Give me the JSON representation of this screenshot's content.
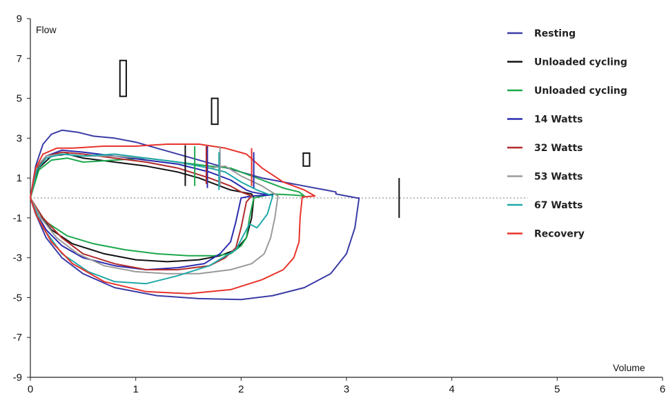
{
  "chart_data": {
    "type": "line",
    "xlabel": "Volume",
    "ylabel": "Flow",
    "xlim": [
      0,
      6
    ],
    "ylim": [
      -9,
      9
    ],
    "x_ticks": [
      "0",
      "1",
      "2",
      "3",
      "4",
      "5",
      "6"
    ],
    "y_ticks": [
      "9",
      "7",
      "5",
      "3",
      "1",
      "-1",
      "-3",
      "-5",
      "-7",
      "-9"
    ],
    "zero_line": "dotted",
    "grid": false,
    "legend_position": "right",
    "series": [
      {
        "name": "Resting",
        "color": "#3a3aa6",
        "x": [
          0,
          0.05,
          0.12,
          0.2,
          0.3,
          0.45,
          0.6,
          0.8,
          1.0,
          1.2,
          1.4,
          1.6,
          1.8,
          2.0,
          2.2,
          2.4,
          2.6,
          2.8,
          2.9,
          2.9,
          3.0,
          3.1,
          3.12,
          3.08,
          3.0,
          2.85,
          2.6,
          2.3,
          2.0,
          1.6,
          1.2,
          0.8,
          0.5,
          0.3,
          0.15,
          0.05,
          0
        ],
        "y": [
          0,
          1.6,
          2.7,
          3.2,
          3.4,
          3.3,
          3.1,
          3.0,
          2.8,
          2.5,
          2.2,
          1.9,
          1.6,
          1.3,
          1.0,
          0.8,
          0.6,
          0.4,
          0.3,
          0.2,
          0.1,
          0.0,
          0,
          -1.5,
          -2.8,
          -3.8,
          -4.5,
          -4.9,
          -5.1,
          -5.05,
          -4.9,
          -4.5,
          -3.8,
          -3.0,
          -2.0,
          -0.8,
          0
        ]
      },
      {
        "name": "Unloaded cycling",
        "color": "#111111",
        "x": [
          0,
          0.08,
          0.2,
          0.35,
          0.5,
          0.8,
          1.1,
          1.4,
          1.6,
          1.8,
          1.9,
          2.0,
          2.1,
          2.12,
          2.1,
          2.05,
          1.95,
          1.8,
          1.6,
          1.3,
          1.0,
          0.7,
          0.4,
          0.2,
          0.08,
          0
        ],
        "y": [
          0,
          1.5,
          2.1,
          2.2,
          2.0,
          1.8,
          1.6,
          1.3,
          1.0,
          0.6,
          0.4,
          0.3,
          0.2,
          0,
          -1.0,
          -2.0,
          -2.6,
          -2.9,
          -3.1,
          -3.2,
          -3.1,
          -2.8,
          -2.3,
          -1.6,
          -0.8,
          0
        ]
      },
      {
        "name": "Unloaded cycling",
        "color": "#1aa84a",
        "x": [
          0,
          0.08,
          0.2,
          0.35,
          0.5,
          0.8,
          1.1,
          1.4,
          1.7,
          1.9,
          2.0,
          2.2,
          2.4,
          2.55,
          2.6,
          2.5,
          2.3,
          2.12,
          2.08,
          2.05,
          2.0,
          1.9,
          1.75,
          1.5,
          1.2,
          0.9,
          0.6,
          0.35,
          0.15,
          0.05,
          0
        ],
        "y": [
          0,
          1.4,
          1.9,
          2.0,
          1.8,
          1.9,
          2.0,
          1.8,
          1.6,
          1.5,
          1.3,
          0.9,
          0.5,
          0.3,
          0.1,
          0.15,
          0.2,
          0,
          -1.0,
          -2.0,
          -2.4,
          -2.8,
          -2.9,
          -2.9,
          -2.8,
          -2.6,
          -2.3,
          -1.9,
          -1.2,
          -0.5,
          0
        ]
      },
      {
        "name": "14 Watts",
        "color": "#2a2ab0",
        "x": [
          0,
          0.06,
          0.15,
          0.3,
          0.5,
          0.8,
          1.1,
          1.4,
          1.7,
          1.9,
          2.05,
          2.1,
          2.2,
          2.3,
          2.1,
          2.0,
          1.95,
          1.9,
          1.8,
          1.65,
          1.4,
          1.1,
          0.8,
          0.5,
          0.3,
          0.15,
          0.05,
          0
        ],
        "y": [
          0,
          1.5,
          2.1,
          2.4,
          2.3,
          2.1,
          1.9,
          1.7,
          1.3,
          0.9,
          0.4,
          0.3,
          0.2,
          0.15,
          0.1,
          0,
          -1.2,
          -2.2,
          -2.8,
          -3.3,
          -3.5,
          -3.6,
          -3.4,
          -3.0,
          -2.4,
          -1.6,
          -0.7,
          0
        ]
      },
      {
        "name": "32 Watts",
        "color": "#b02a2a",
        "x": [
          0,
          0.06,
          0.15,
          0.3,
          0.5,
          0.8,
          1.1,
          1.4,
          1.7,
          1.9,
          2.0,
          2.1,
          2.05,
          2.0,
          1.95,
          1.85,
          1.7,
          1.4,
          1.1,
          0.8,
          0.5,
          0.3,
          0.12,
          0
        ],
        "y": [
          0,
          1.5,
          2.1,
          2.3,
          2.2,
          2.0,
          1.8,
          1.5,
          1.0,
          0.6,
          0.3,
          0.1,
          -0.2,
          -1.5,
          -2.5,
          -3.0,
          -3.4,
          -3.6,
          -3.6,
          -3.3,
          -2.8,
          -2.0,
          -1.0,
          0
        ]
      },
      {
        "name": "53 Watts",
        "color": "#9a9a9a",
        "x": [
          0,
          0.06,
          0.15,
          0.3,
          0.5,
          0.8,
          1.1,
          1.4,
          1.7,
          1.85,
          2.0,
          2.2,
          2.35,
          2.32,
          2.28,
          2.22,
          2.1,
          1.9,
          1.6,
          1.3,
          1.0,
          0.7,
          0.45,
          0.25,
          0.1,
          0
        ],
        "y": [
          0,
          1.6,
          2.1,
          2.2,
          2.1,
          2.1,
          2.0,
          1.8,
          1.5,
          1.6,
          1.1,
          0.6,
          0.1,
          -1.0,
          -2.0,
          -2.8,
          -3.3,
          -3.6,
          -3.8,
          -3.8,
          -3.7,
          -3.4,
          -2.8,
          -2.0,
          -1.0,
          0
        ]
      },
      {
        "name": "67 Watts",
        "color": "#20a8a8",
        "x": [
          0,
          0.06,
          0.15,
          0.3,
          0.5,
          0.8,
          1.1,
          1.4,
          1.7,
          1.85,
          2.0,
          2.15,
          2.3,
          2.25,
          2.18,
          2.15,
          2.08,
          1.95,
          1.7,
          1.4,
          1.1,
          0.8,
          0.55,
          0.3,
          0.12,
          0
        ],
        "y": [
          0,
          1.4,
          2.0,
          2.2,
          2.1,
          2.2,
          2.0,
          1.8,
          1.5,
          1.3,
          0.8,
          0.4,
          0.1,
          -0.8,
          -1.3,
          -1.5,
          -1.3,
          -2.6,
          -3.4,
          -3.9,
          -4.3,
          -4.2,
          -3.7,
          -2.8,
          -1.5,
          0
        ]
      },
      {
        "name": "Recovery",
        "color": "#e8322a",
        "x": [
          0,
          0.05,
          0.12,
          0.25,
          0.4,
          0.7,
          1.0,
          1.3,
          1.6,
          1.85,
          2.05,
          2.2,
          2.4,
          2.6,
          2.7,
          2.58,
          2.56,
          2.55,
          2.5,
          2.4,
          2.2,
          1.9,
          1.5,
          1.1,
          0.7,
          0.4,
          0.2,
          0.06,
          0
        ],
        "y": [
          0,
          1.5,
          2.2,
          2.5,
          2.5,
          2.6,
          2.6,
          2.7,
          2.7,
          2.5,
          2.2,
          1.5,
          0.8,
          0.4,
          0.1,
          0.05,
          -1.0,
          -2.2,
          -3.0,
          -3.6,
          -4.1,
          -4.6,
          -4.8,
          -4.7,
          -4.2,
          -3.3,
          -2.2,
          -0.9,
          0
        ]
      }
    ],
    "markers": {
      "rectangles": [
        {
          "x": 0.88,
          "y_bottom": 5.1,
          "y_top": 6.9,
          "w": 0.06
        },
        {
          "x": 1.75,
          "y_bottom": 3.7,
          "y_top": 5.0,
          "w": 0.06
        },
        {
          "x": 2.62,
          "y_bottom": 1.6,
          "y_top": 2.25,
          "w": 0.06
        }
      ],
      "vertical_ticks": [
        {
          "x": 1.47,
          "y1": 0.6,
          "y2": 2.65,
          "color": "#111111"
        },
        {
          "x": 1.56,
          "y1": 0.6,
          "y2": 2.6,
          "color": "#1aa84a"
        },
        {
          "x": 1.68,
          "y1": 0.5,
          "y2": 2.6,
          "color": "#2a2ab0"
        },
        {
          "x": 1.67,
          "y1": 0.7,
          "y2": 2.6,
          "color": "#b02a2a"
        },
        {
          "x": 1.8,
          "y1": 0.6,
          "y2": 2.6,
          "color": "#9a9a9a"
        },
        {
          "x": 1.79,
          "y1": 0.4,
          "y2": 2.3,
          "color": "#20a8a8"
        },
        {
          "x": 2.12,
          "y1": 0.5,
          "y2": 2.3,
          "color": "#2a2ab0"
        },
        {
          "x": 2.1,
          "y1": 0.6,
          "y2": 2.5,
          "color": "#e8322a"
        },
        {
          "x": 3.5,
          "y1": -1.0,
          "y2": 1.0,
          "color": "#111111"
        }
      ]
    }
  }
}
